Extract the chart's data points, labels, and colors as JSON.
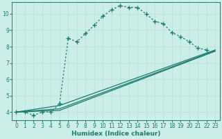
{
  "xlabel": "Humidex (Indice chaleur)",
  "bg_color": "#cceee8",
  "grid_color": "#b8e0da",
  "line_color": "#1a7a6e",
  "xlim": [
    -0.5,
    23.5
  ],
  "ylim": [
    3.5,
    10.7
  ],
  "yticks": [
    4,
    5,
    6,
    7,
    8,
    9,
    10
  ],
  "xticks": [
    0,
    1,
    2,
    3,
    4,
    5,
    6,
    7,
    8,
    9,
    10,
    11,
    12,
    13,
    14,
    15,
    16,
    17,
    18,
    19,
    20,
    21,
    22,
    23
  ],
  "curve": {
    "x": [
      0,
      1,
      2,
      3,
      4,
      5,
      6,
      7,
      8,
      9,
      10,
      11,
      12,
      13,
      14,
      15,
      16,
      17,
      18,
      19,
      20,
      21,
      22
    ],
    "y": [
      4.0,
      4.0,
      3.8,
      4.0,
      4.0,
      4.5,
      8.5,
      8.3,
      8.8,
      9.3,
      9.85,
      10.25,
      10.5,
      10.4,
      10.4,
      10.0,
      9.55,
      9.4,
      8.85,
      8.6,
      8.3,
      7.9,
      7.8
    ]
  },
  "line1": {
    "x": [
      0,
      5,
      23
    ],
    "y": [
      4.0,
      4.4,
      7.8
    ]
  },
  "line2": {
    "x": [
      0,
      5,
      23
    ],
    "y": [
      4.0,
      4.2,
      7.75
    ]
  },
  "line3": {
    "x": [
      0,
      5,
      23
    ],
    "y": [
      4.0,
      4.1,
      7.72
    ]
  }
}
